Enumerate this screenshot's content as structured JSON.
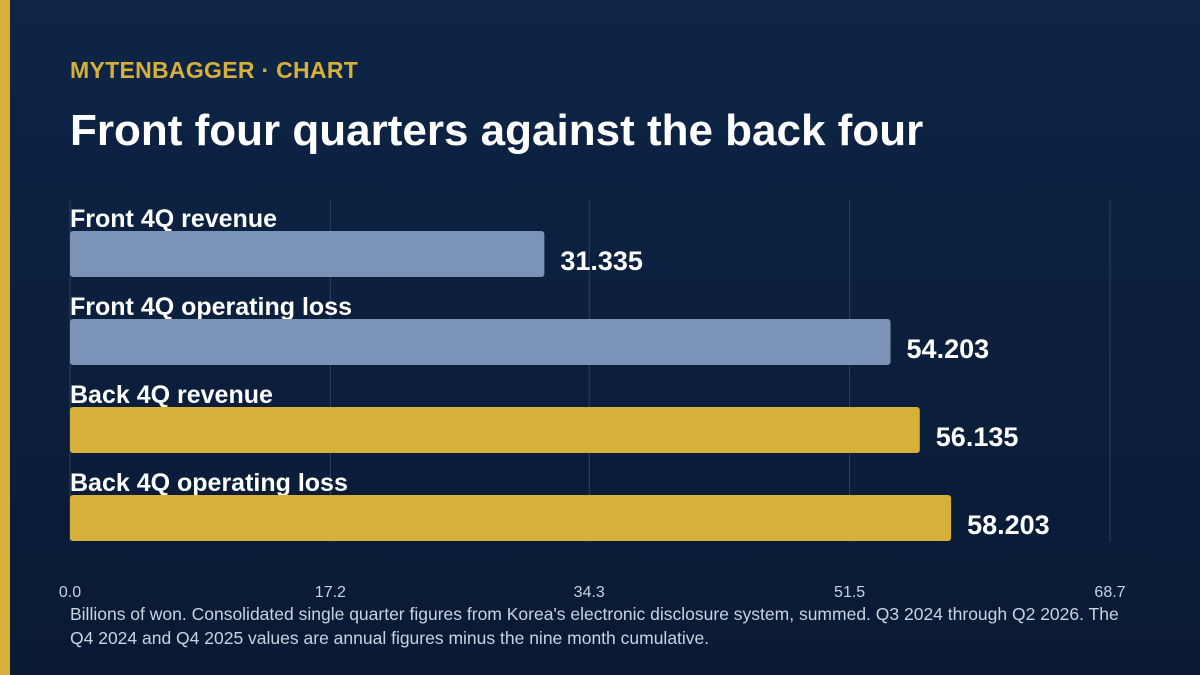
{
  "header": {
    "kicker": "MYTENBAGGER · CHART",
    "title": "Front four quarters against the back four"
  },
  "footnote": "Billions of won. Consolidated single quarter figures from Korea's electronic disclosure system, summed. Q3 2024 through Q2 2026. The Q4 2024 and Q4 2025 values are annual figures minus the nine month cumulative.",
  "colors": {
    "accent": "#d6b03a",
    "front_bar": "#7b93b6",
    "back_bar": "#d6b03a",
    "background": "#0e2547",
    "grid": "#2c4266"
  },
  "chart_data": {
    "type": "bar",
    "orientation": "horizontal",
    "categories": [
      "Front 4Q revenue",
      "Front 4Q operating loss",
      "Back 4Q revenue",
      "Back 4Q operating loss"
    ],
    "values": [
      31.335,
      54.203,
      56.135,
      58.203
    ],
    "value_labels": [
      "31.335",
      "54.203",
      "56.135",
      "58.203"
    ],
    "bar_colors": [
      "#7b93b6",
      "#7b93b6",
      "#d6b03a",
      "#d6b03a"
    ],
    "xlim": [
      0,
      68.7
    ],
    "xticks": [
      0,
      17.2,
      34.3,
      51.5,
      68.7
    ],
    "xtick_labels": [
      "0.0",
      "17.2",
      "34.3",
      "51.5",
      "68.7"
    ],
    "grid": true,
    "title": "Front four quarters against the back four",
    "xlabel": "",
    "ylabel": ""
  }
}
